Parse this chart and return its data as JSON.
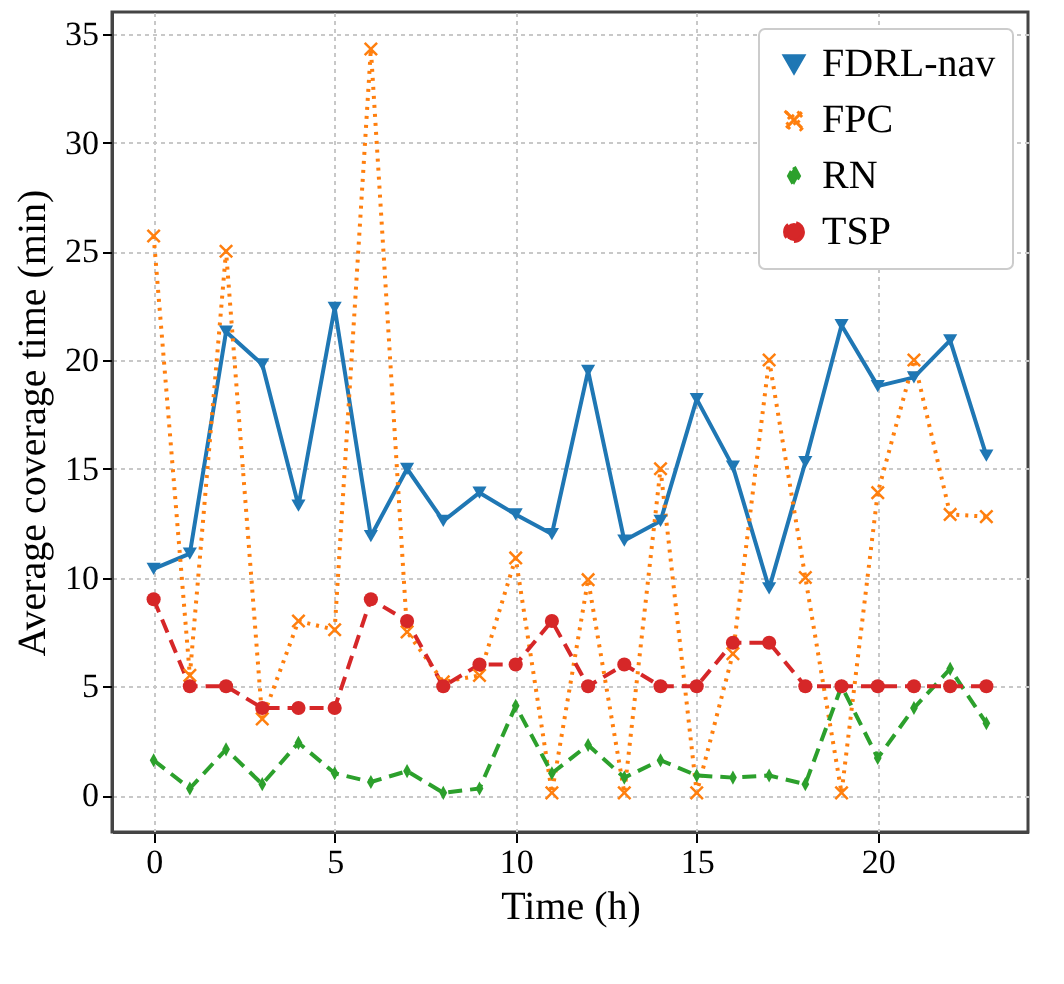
{
  "chart_data": {
    "type": "line",
    "xlabel": "Time (h)",
    "ylabel": "Average coverage time (min)",
    "x": [
      0,
      1,
      2,
      3,
      4,
      5,
      6,
      7,
      8,
      9,
      10,
      11,
      12,
      13,
      14,
      15,
      16,
      17,
      18,
      19,
      20,
      21,
      22,
      23
    ],
    "series": [
      {
        "name": "FDRL-nav",
        "color": "#1f77b4",
        "marker": "triangle",
        "line_style": "solid",
        "values": [
          10.4,
          11.1,
          21.3,
          19.8,
          13.3,
          22.4,
          11.9,
          15.0,
          12.6,
          13.9,
          12.9,
          12.0,
          19.5,
          11.7,
          12.6,
          18.2,
          15.1,
          9.5,
          15.3,
          21.6,
          18.8,
          19.2,
          20.9,
          15.6
        ]
      },
      {
        "name": "FPC",
        "color": "#ff7f0e",
        "marker": "cross",
        "line_style": "dotted",
        "values": [
          25.7,
          5.5,
          25.0,
          3.5,
          8.0,
          7.6,
          34.3,
          7.5,
          5.2,
          5.5,
          10.9,
          0.1,
          9.9,
          0.1,
          15.0,
          0.1,
          6.5,
          20.0,
          10.0,
          0.1,
          13.9,
          20.0,
          12.9,
          12.8
        ]
      },
      {
        "name": "RN",
        "color": "#2ca02c",
        "marker": "diamond",
        "line_style": "dashed",
        "values": [
          1.6,
          0.3,
          2.1,
          0.5,
          2.4,
          1.0,
          0.6,
          1.1,
          0.1,
          0.3,
          4.1,
          1.0,
          2.3,
          0.8,
          1.6,
          0.9,
          0.8,
          0.9,
          0.5,
          5.0,
          1.7,
          4.0,
          5.8,
          3.3
        ]
      },
      {
        "name": "TSP",
        "color": "#d62728",
        "marker": "circle",
        "line_style": "dashed",
        "values": [
          9,
          5,
          5,
          4,
          4,
          4,
          9,
          8,
          5,
          6,
          6,
          8,
          5,
          6,
          5,
          5,
          7,
          7,
          5,
          5,
          5,
          5,
          5,
          5
        ]
      }
    ],
    "xlim": [
      -1.15,
      24.15
    ],
    "xticks": [
      0,
      5,
      10,
      15,
      20
    ],
    "ylim": [
      -1.7,
      36
    ],
    "yticks": [
      0,
      5,
      10,
      15,
      20,
      25,
      30,
      35
    ],
    "grid": true,
    "legend": "top right"
  }
}
